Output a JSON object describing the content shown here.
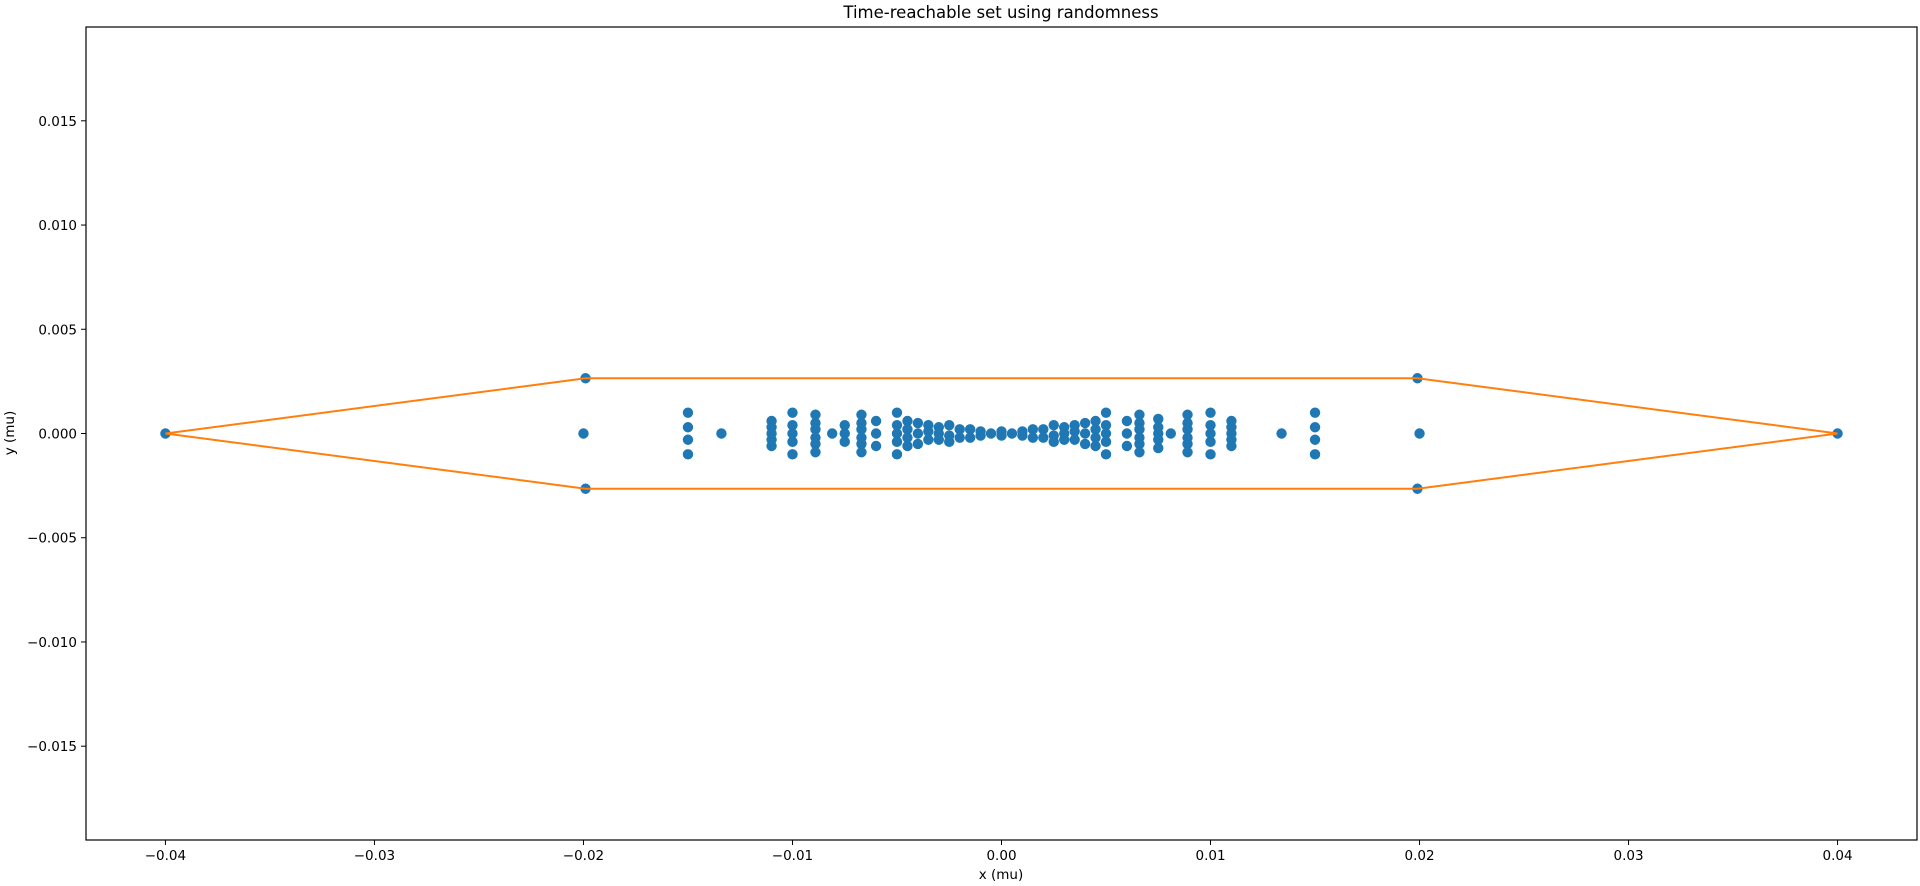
{
  "chart_data": {
    "type": "scatter",
    "title": "Time-reachable set using randomness",
    "xlabel": "x (mu)",
    "ylabel": "y (mu)",
    "xlim": [
      -0.0438,
      0.0438
    ],
    "ylim": [
      -0.0195,
      0.0195
    ],
    "grid": false,
    "xticks": [
      -0.04,
      -0.03,
      -0.02,
      -0.01,
      0.0,
      0.01,
      0.02,
      0.03,
      0.04
    ],
    "xtick_labels": [
      "−0.04",
      "−0.03",
      "−0.02",
      "−0.01",
      "0.00",
      "0.01",
      "0.02",
      "0.03",
      "0.04"
    ],
    "yticks": [
      -0.015,
      -0.01,
      -0.005,
      0.0,
      0.005,
      0.01,
      0.015
    ],
    "ytick_labels": [
      "−0.015",
      "−0.010",
      "−0.005",
      "0.000",
      "0.005",
      "0.010",
      "0.015"
    ],
    "colors": {
      "points": "#1f77b4",
      "hull": "#ff7f0e",
      "axes": "#000000"
    },
    "series": [
      {
        "kind": "scatter",
        "points": [
          [
            -0.04,
            0.0
          ],
          [
            0.04,
            0.0
          ],
          [
            -0.0199,
            0.00265
          ],
          [
            -0.0199,
            -0.00265
          ],
          [
            -0.02,
            0.0
          ],
          [
            0.0199,
            0.00265
          ],
          [
            0.0199,
            -0.00265
          ],
          [
            0.02,
            0.0
          ],
          [
            -0.015,
            0.001
          ],
          [
            -0.015,
            0.0003
          ],
          [
            -0.015,
            -0.0003
          ],
          [
            -0.015,
            -0.001
          ],
          [
            -0.0134,
            0.0
          ],
          [
            0.015,
            0.001
          ],
          [
            0.015,
            0.0003
          ],
          [
            0.015,
            -0.0003
          ],
          [
            0.015,
            -0.001
          ],
          [
            0.0134,
            0.0
          ],
          [
            -0.011,
            0.0006
          ],
          [
            -0.011,
            0.0003
          ],
          [
            -0.011,
            0.0
          ],
          [
            -0.011,
            -0.0003
          ],
          [
            -0.011,
            -0.0006
          ],
          [
            0.011,
            0.0006
          ],
          [
            0.011,
            0.0003
          ],
          [
            0.011,
            0.0
          ],
          [
            0.011,
            -0.0003
          ],
          [
            0.011,
            -0.0006
          ],
          [
            -0.01,
            0.001
          ],
          [
            -0.01,
            0.0004
          ],
          [
            -0.01,
            0.0
          ],
          [
            -0.01,
            -0.0004
          ],
          [
            -0.01,
            -0.001
          ],
          [
            0.01,
            0.001
          ],
          [
            0.01,
            0.0004
          ],
          [
            0.01,
            0.0
          ],
          [
            0.01,
            -0.0004
          ],
          [
            0.01,
            -0.001
          ],
          [
            -0.0089,
            0.0009
          ],
          [
            -0.0089,
            0.0005
          ],
          [
            -0.0089,
            0.0002
          ],
          [
            -0.0089,
            -0.0002
          ],
          [
            -0.0089,
            -0.0005
          ],
          [
            -0.0089,
            -0.0009
          ],
          [
            0.0089,
            0.0009
          ],
          [
            0.0089,
            0.0005
          ],
          [
            0.0089,
            0.0002
          ],
          [
            0.0089,
            -0.0002
          ],
          [
            0.0089,
            -0.0005
          ],
          [
            0.0089,
            -0.0009
          ],
          [
            -0.0081,
            0.0
          ],
          [
            0.0081,
            0.0
          ],
          [
            -0.0075,
            0.0004
          ],
          [
            -0.0075,
            0.0
          ],
          [
            -0.0075,
            -0.0004
          ],
          [
            0.0075,
            0.0007
          ],
          [
            0.0075,
            0.0003
          ],
          [
            0.0075,
            0.0
          ],
          [
            0.0075,
            -0.0003
          ],
          [
            0.0075,
            -0.0007
          ],
          [
            -0.0067,
            0.0009
          ],
          [
            -0.0067,
            0.0005
          ],
          [
            -0.0067,
            0.0002
          ],
          [
            -0.0067,
            -0.0002
          ],
          [
            -0.0067,
            -0.0005
          ],
          [
            -0.0067,
            -0.0009
          ],
          [
            0.0066,
            0.0009
          ],
          [
            0.0066,
            0.0005
          ],
          [
            0.0066,
            0.0002
          ],
          [
            0.0066,
            -0.0002
          ],
          [
            0.0066,
            -0.0005
          ],
          [
            0.0066,
            -0.0009
          ],
          [
            -0.006,
            0.0006
          ],
          [
            -0.006,
            0.0
          ],
          [
            -0.006,
            -0.0006
          ],
          [
            0.006,
            0.0006
          ],
          [
            0.006,
            0.0
          ],
          [
            0.006,
            -0.0006
          ],
          [
            -0.005,
            0.001
          ],
          [
            -0.005,
            0.0004
          ],
          [
            -0.005,
            0.0
          ],
          [
            -0.005,
            -0.0004
          ],
          [
            -0.005,
            -0.001
          ],
          [
            0.005,
            0.001
          ],
          [
            0.005,
            0.0004
          ],
          [
            0.005,
            0.0
          ],
          [
            0.005,
            -0.0004
          ],
          [
            0.005,
            -0.001
          ],
          [
            -0.0045,
            0.0006
          ],
          [
            -0.0045,
            0.0002
          ],
          [
            -0.0045,
            -0.0002
          ],
          [
            -0.0045,
            -0.0006
          ],
          [
            0.0045,
            0.0006
          ],
          [
            0.0045,
            0.0002
          ],
          [
            0.0045,
            -0.0002
          ],
          [
            0.0045,
            -0.0006
          ],
          [
            -0.004,
            0.0005
          ],
          [
            -0.004,
            0.0
          ],
          [
            -0.004,
            -0.0005
          ],
          [
            0.004,
            0.0005
          ],
          [
            0.004,
            0.0
          ],
          [
            0.004,
            -0.0005
          ],
          [
            -0.0035,
            0.0004
          ],
          [
            -0.0035,
            0.0001
          ],
          [
            -0.0035,
            -0.0003
          ],
          [
            0.0035,
            0.0004
          ],
          [
            0.0035,
            0.0001
          ],
          [
            0.0035,
            -0.0003
          ],
          [
            -0.003,
            0.0003
          ],
          [
            -0.003,
            0.0
          ],
          [
            -0.003,
            -0.0003
          ],
          [
            0.003,
            0.0003
          ],
          [
            0.003,
            0.0
          ],
          [
            0.003,
            -0.0003
          ],
          [
            -0.0025,
            0.0004
          ],
          [
            -0.0025,
            -0.0001
          ],
          [
            -0.0025,
            -0.0004
          ],
          [
            0.0025,
            0.0004
          ],
          [
            0.0025,
            -0.0001
          ],
          [
            0.0025,
            -0.0004
          ],
          [
            -0.002,
            0.0002
          ],
          [
            -0.002,
            -0.0002
          ],
          [
            0.002,
            0.0002
          ],
          [
            0.002,
            -0.0002
          ],
          [
            -0.0015,
            0.0002
          ],
          [
            -0.0015,
            -0.0002
          ],
          [
            0.0015,
            0.0002
          ],
          [
            0.0015,
            -0.0002
          ],
          [
            -0.001,
            0.0001
          ],
          [
            -0.001,
            -0.0001
          ],
          [
            0.001,
            0.0001
          ],
          [
            0.001,
            -0.0001
          ],
          [
            -0.0005,
            0.0
          ],
          [
            0.0005,
            0.0
          ],
          [
            0.0,
            0.0001
          ],
          [
            0.0,
            -0.0001
          ]
        ]
      },
      {
        "kind": "line",
        "points": [
          [
            -0.04,
            0.0
          ],
          [
            -0.0199,
            0.00265
          ],
          [
            0.0199,
            0.00265
          ],
          [
            0.04,
            0.0
          ],
          [
            0.0199,
            -0.00265
          ],
          [
            -0.0199,
            -0.00265
          ],
          [
            -0.04,
            0.0
          ]
        ]
      }
    ]
  }
}
